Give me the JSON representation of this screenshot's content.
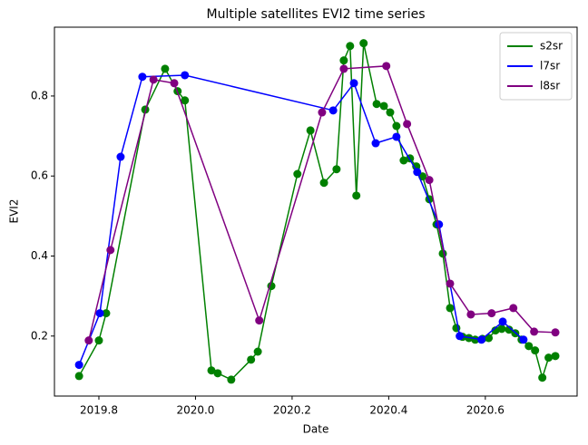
{
  "chart_data": {
    "type": "line",
    "title": "Multiple satellites EVI2 time series",
    "x_label": "Date",
    "y_label": "EVI2",
    "xlim": [
      2019.708,
      2020.79
    ],
    "xticks": [
      2019.8,
      {
        "value": 2020,
        "label": "2020.0"
      },
      2020.2,
      2020.4,
      2020.6
    ],
    "ylim": [
      0.05,
      0.972
    ],
    "yticks": [
      0.2,
      0.4,
      0.6,
      0.8
    ],
    "grid": false,
    "legend": "upper right",
    "series": [
      {
        "name": "s2sr",
        "color": "#008000",
        "x": [
          2019.759,
          2019.8,
          2019.815,
          2019.896,
          2019.937,
          2019.963,
          2019.978,
          2020.033,
          2020.046,
          2020.074,
          2020.115,
          2020.129,
          2020.157,
          2020.211,
          2020.238,
          2020.266,
          2020.292,
          2020.307,
          2020.32,
          2020.333,
          2020.348,
          2020.375,
          2020.39,
          2020.403,
          2020.416,
          2020.431,
          2020.444,
          2020.457,
          2020.47,
          2020.484,
          2020.499,
          2020.512,
          2020.527,
          2020.54,
          2020.553,
          2020.566,
          2020.579,
          2020.594,
          2020.607,
          2020.621,
          2020.634,
          2020.649,
          2020.662,
          2020.675,
          2020.69,
          2020.703,
          2020.718,
          2020.731,
          2020.745
        ],
        "values": [
          0.1,
          0.189,
          0.257,
          0.766,
          0.868,
          0.812,
          0.789,
          0.114,
          0.107,
          0.091,
          0.141,
          0.161,
          0.325,
          0.605,
          0.714,
          0.583,
          0.617,
          0.889,
          0.925,
          0.551,
          0.932,
          0.78,
          0.775,
          0.759,
          0.725,
          0.639,
          0.644,
          0.624,
          0.599,
          0.542,
          0.479,
          0.406,
          0.27,
          0.22,
          0.198,
          0.195,
          0.191,
          0.193,
          0.195,
          0.214,
          0.218,
          0.216,
          0.207,
          0.191,
          0.175,
          0.164,
          0.096,
          0.146,
          0.15
        ]
      },
      {
        "name": "l7sr",
        "color": "#0000ff",
        "x": [
          2019.759,
          2019.802,
          2019.845,
          2019.89,
          2019.978,
          2020.285,
          2020.328,
          2020.373,
          2020.416,
          2020.459,
          2020.504,
          2020.547,
          2020.592,
          2020.636,
          2020.679
        ],
        "values": [
          0.128,
          0.257,
          0.648,
          0.848,
          0.852,
          0.764,
          0.832,
          0.682,
          0.698,
          0.61,
          0.479,
          0.2,
          0.191,
          0.236,
          0.191
        ]
      },
      {
        "name": "l8sr",
        "color": "#800080",
        "x": [
          2019.779,
          2019.824,
          2019.913,
          2019.956,
          2020.132,
          2020.262,
          2020.307,
          2020.395,
          2020.438,
          2020.484,
          2020.527,
          2020.57,
          2020.613,
          2020.658,
          2020.701,
          2020.745
        ],
        "values": [
          0.189,
          0.415,
          0.841,
          0.832,
          0.239,
          0.759,
          0.868,
          0.875,
          0.73,
          0.59,
          0.331,
          0.254,
          0.257,
          0.27,
          0.211,
          0.209
        ]
      }
    ]
  }
}
